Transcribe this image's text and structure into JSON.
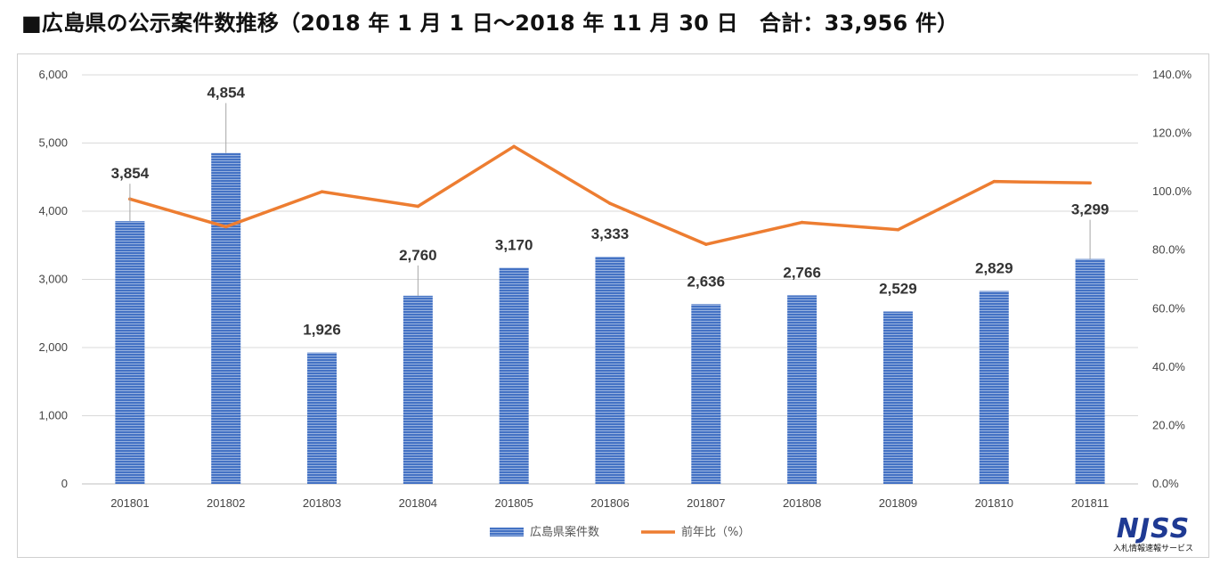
{
  "title": "■広島県の公示案件数推移（2018 年 1 月 1 日〜2018 年 11 月 30 日　合計：33,956 件）",
  "logo": {
    "text": "NJSS",
    "subtext": "入札情報速報サービス",
    "color": "#1f3a93"
  },
  "colors": {
    "bar": "#4472c4",
    "bar_stripe": "#ffffff",
    "line": "#ed7d31",
    "grid": "#d9d9d9"
  },
  "chart_data": {
    "type": "bar",
    "categories": [
      "201801",
      "201802",
      "201803",
      "201804",
      "201805",
      "201806",
      "201807",
      "201808",
      "201809",
      "201810",
      "201811"
    ],
    "series": [
      {
        "name": "広島県案件数",
        "type": "bar",
        "axis": "left",
        "values": [
          3854,
          4854,
          1926,
          2760,
          3170,
          3333,
          2636,
          2766,
          2529,
          2829,
          3299
        ],
        "labels": [
          "3,854",
          "4,854",
          "1,926",
          "2,760",
          "3,170",
          "3,333",
          "2,636",
          "2,766",
          "2,529",
          "2,829",
          "3,299"
        ]
      },
      {
        "name": "前年比（%）",
        "type": "line",
        "axis": "right",
        "values": [
          97.5,
          88.0,
          100.0,
          95.0,
          115.5,
          96.0,
          82.0,
          89.5,
          87.0,
          103.5,
          103.0
        ]
      }
    ],
    "y_left": {
      "min": 0,
      "max": 6000,
      "ticks": [
        "0",
        "1,000",
        "2,000",
        "3,000",
        "4,000",
        "5,000",
        "6,000"
      ]
    },
    "y_right": {
      "min": 0,
      "max": 140,
      "ticks": [
        "0.0%",
        "20.0%",
        "40.0%",
        "60.0%",
        "80.0%",
        "100.0%",
        "120.0%",
        "140.0%"
      ]
    },
    "grid": true,
    "legend": "bottom"
  }
}
